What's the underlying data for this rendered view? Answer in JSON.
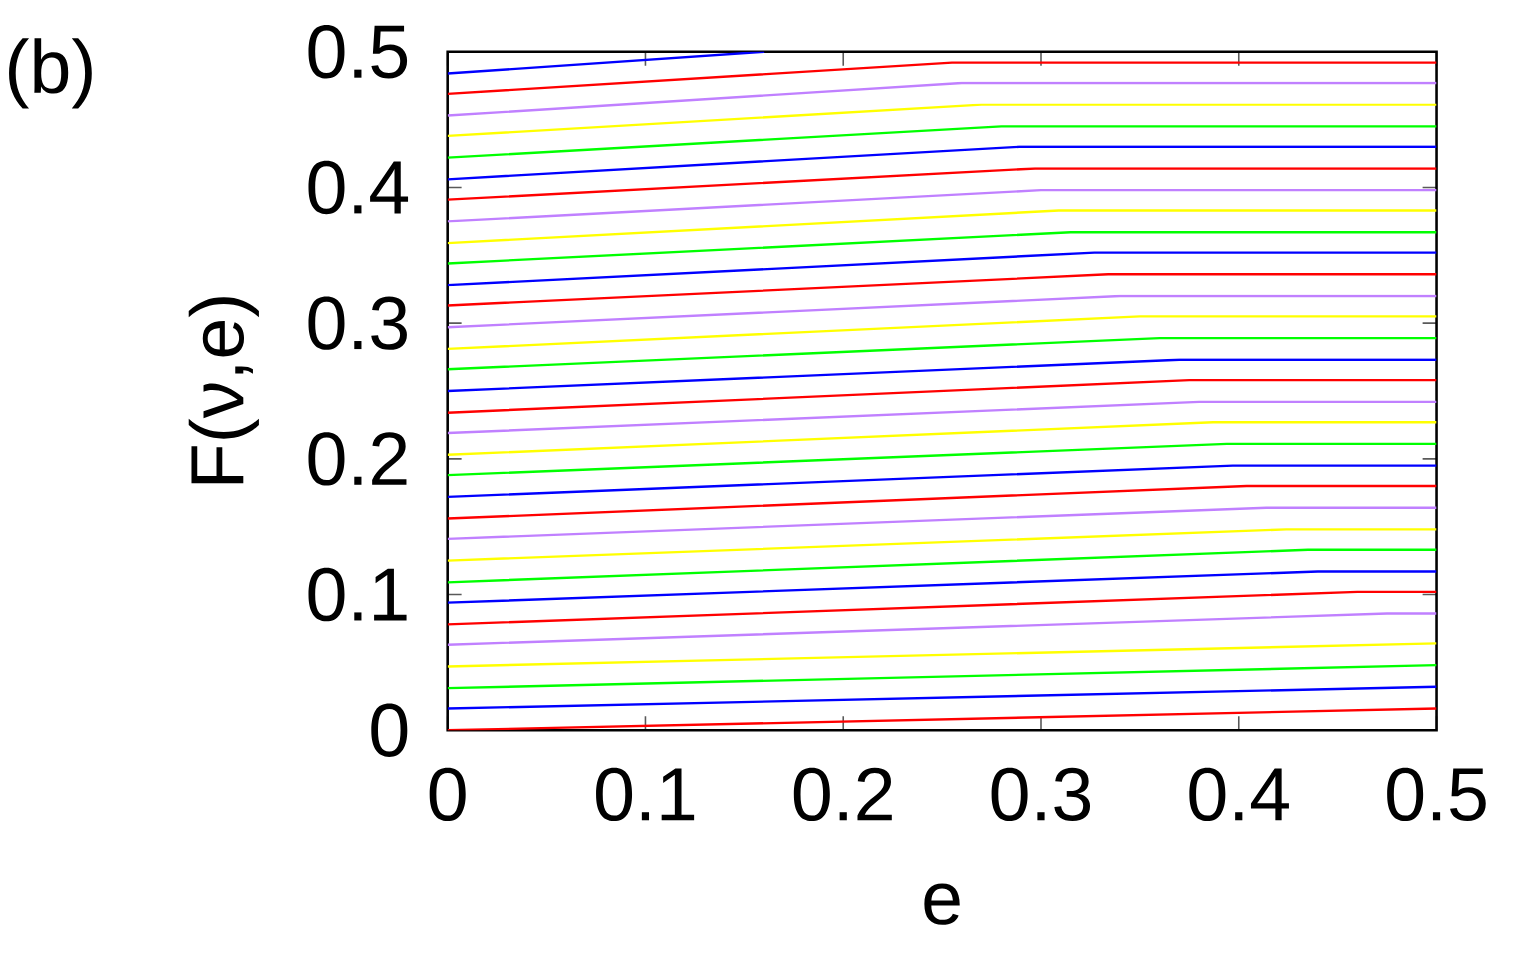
{
  "chart_data": {
    "type": "line",
    "xlabel": "e",
    "ylabel": "F(ν,e)",
    "annotations": [
      "(b)"
    ],
    "xlim": [
      0,
      0.5
    ],
    "ylim": [
      0,
      0.5
    ],
    "xticks": [
      0,
      0.1,
      0.2,
      0.3,
      0.4,
      0.5
    ],
    "yticks": [
      0,
      0.1,
      0.2,
      0.3,
      0.4,
      0.5
    ],
    "grid": false,
    "marker": "none",
    "line_style": "solid",
    "series": [
      {
        "color": "#ff0000",
        "x": [
          0,
          0.5
        ],
        "values": [
          0,
          0.016
        ]
      },
      {
        "color": "#0000ff",
        "x": [
          0,
          0.5
        ],
        "values": [
          0.016,
          0.032
        ]
      },
      {
        "color": "#00ff00",
        "x": [
          0,
          0.5
        ],
        "values": [
          0.031,
          0.048
        ]
      },
      {
        "color": "#ffff00",
        "x": [
          0,
          0.5
        ],
        "values": [
          0.047,
          0.064
        ]
      },
      {
        "color": "#c080ff",
        "x": [
          0,
          0.475,
          0.5
        ],
        "values": [
          0.063,
          0.086,
          0.086
        ]
      },
      {
        "color": "#ff0000",
        "x": [
          0,
          0.46,
          0.5
        ],
        "values": [
          0.078,
          0.102,
          0.102
        ]
      },
      {
        "color": "#0000ff",
        "x": [
          0,
          0.44,
          0.5
        ],
        "values": [
          0.094,
          0.117,
          0.117
        ]
      },
      {
        "color": "#00ff00",
        "x": [
          0,
          0.435,
          0.5
        ],
        "values": [
          0.109,
          0.133,
          0.133
        ]
      },
      {
        "color": "#ffff00",
        "x": [
          0,
          0.424,
          0.5
        ],
        "values": [
          0.125,
          0.148,
          0.148
        ]
      },
      {
        "color": "#c080ff",
        "x": [
          0,
          0.414,
          0.5
        ],
        "values": [
          0.141,
          0.164,
          0.164
        ]
      },
      {
        "color": "#ff0000",
        "x": [
          0,
          0.404,
          0.5
        ],
        "values": [
          0.156,
          0.18,
          0.18
        ]
      },
      {
        "color": "#0000ff",
        "x": [
          0,
          0.397,
          0.5
        ],
        "values": [
          0.172,
          0.195,
          0.195
        ]
      },
      {
        "color": "#00ff00",
        "x": [
          0,
          0.394,
          0.5
        ],
        "values": [
          0.188,
          0.211,
          0.211
        ]
      },
      {
        "color": "#ffff00",
        "x": [
          0,
          0.387,
          0.5
        ],
        "values": [
          0.203,
          0.227,
          0.227
        ]
      },
      {
        "color": "#c080ff",
        "x": [
          0,
          0.38,
          0.5
        ],
        "values": [
          0.219,
          0.242,
          0.242
        ]
      },
      {
        "color": "#ff0000",
        "x": [
          0,
          0.375,
          0.5
        ],
        "values": [
          0.234,
          0.258,
          0.258
        ]
      },
      {
        "color": "#0000ff",
        "x": [
          0,
          0.37,
          0.5
        ],
        "values": [
          0.25,
          0.273,
          0.273
        ]
      },
      {
        "color": "#00ff00",
        "x": [
          0,
          0.36,
          0.5
        ],
        "values": [
          0.266,
          0.289,
          0.289
        ]
      },
      {
        "color": "#ffff00",
        "x": [
          0,
          0.35,
          0.5
        ],
        "values": [
          0.281,
          0.305,
          0.305
        ]
      },
      {
        "color": "#c080ff",
        "x": [
          0,
          0.34,
          0.5
        ],
        "values": [
          0.297,
          0.32,
          0.32
        ]
      },
      {
        "color": "#ff0000",
        "x": [
          0,
          0.334,
          0.5
        ],
        "values": [
          0.313,
          0.336,
          0.336
        ]
      },
      {
        "color": "#0000ff",
        "x": [
          0,
          0.327,
          0.5
        ],
        "values": [
          0.328,
          0.352,
          0.352
        ]
      },
      {
        "color": "#00ff00",
        "x": [
          0,
          0.315,
          0.5
        ],
        "values": [
          0.344,
          0.367,
          0.367
        ]
      },
      {
        "color": "#ffff00",
        "x": [
          0,
          0.309,
          0.5
        ],
        "values": [
          0.359,
          0.383,
          0.383
        ]
      },
      {
        "color": "#c080ff",
        "x": [
          0,
          0.3,
          0.5
        ],
        "values": [
          0.375,
          0.398,
          0.398
        ]
      },
      {
        "color": "#ff0000",
        "x": [
          0,
          0.297,
          0.5
        ],
        "values": [
          0.391,
          0.414,
          0.414
        ]
      },
      {
        "color": "#0000ff",
        "x": [
          0,
          0.289,
          0.5
        ],
        "values": [
          0.406,
          0.43,
          0.43
        ]
      },
      {
        "color": "#00ff00",
        "x": [
          0,
          0.28,
          0.5
        ],
        "values": [
          0.422,
          0.445,
          0.445
        ]
      },
      {
        "color": "#ffff00",
        "x": [
          0,
          0.27,
          0.5
        ],
        "values": [
          0.438,
          0.461,
          0.461
        ]
      },
      {
        "color": "#c080ff",
        "x": [
          0,
          0.26,
          0.5
        ],
        "values": [
          0.453,
          0.477,
          0.477
        ]
      },
      {
        "color": "#ff0000",
        "x": [
          0,
          0.255,
          0.5
        ],
        "values": [
          0.469,
          0.492,
          0.492
        ]
      },
      {
        "color": "#0000ff",
        "x": [
          0,
          0.16
        ],
        "values": [
          0.484,
          0.5
        ]
      }
    ]
  }
}
